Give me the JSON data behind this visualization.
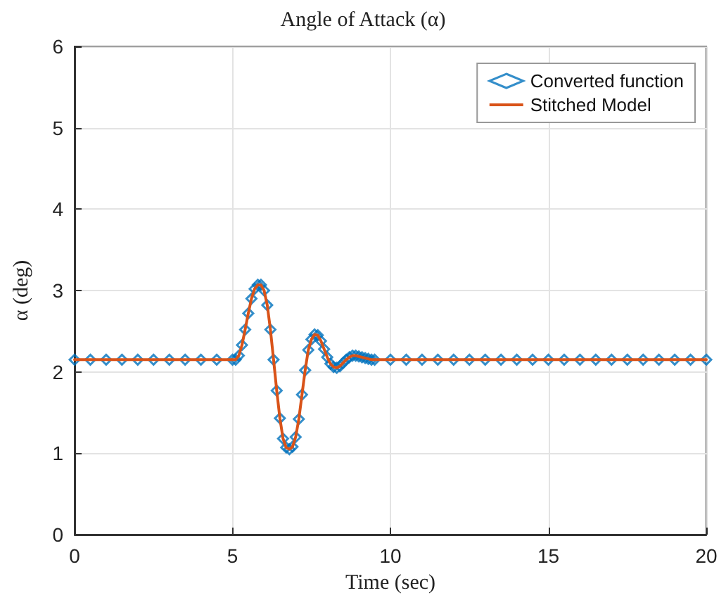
{
  "chart_data": {
    "type": "line",
    "title": "Angle of Attack (α)",
    "xlabel": "Time (sec)",
    "ylabel": "α (deg)",
    "x": [
      0,
      0.5,
      1,
      1.5,
      2,
      2.5,
      3,
      3.5,
      4,
      4.5,
      5,
      5.1,
      5.2,
      5.3,
      5.4,
      5.5,
      5.6,
      5.7,
      5.8,
      5.9,
      6,
      6.1,
      6.2,
      6.3,
      6.4,
      6.5,
      6.6,
      6.7,
      6.8,
      6.9,
      7,
      7.1,
      7.2,
      7.3,
      7.4,
      7.5,
      7.6,
      7.7,
      7.8,
      7.9,
      8,
      8.1,
      8.2,
      8.3,
      8.4,
      8.5,
      8.6,
      8.7,
      8.8,
      8.9,
      9,
      9.1,
      9.2,
      9.3,
      9.4,
      9.5,
      10,
      10.5,
      11,
      11.5,
      12,
      12.5,
      13,
      13.5,
      14,
      14.5,
      15,
      15.5,
      16,
      16.5,
      17,
      17.5,
      18,
      18.5,
      19,
      19.5,
      20
    ],
    "series": [
      {
        "name": "Converted function",
        "type": "scatter",
        "marker": "diamond",
        "color": "#0072bd",
        "values": [
          2.15,
          2.15,
          2.15,
          2.15,
          2.15,
          2.15,
          2.15,
          2.15,
          2.15,
          2.15,
          2.15,
          2.15,
          2.2,
          2.33,
          2.52,
          2.72,
          2.9,
          3.02,
          3.07,
          3.07,
          3.0,
          2.82,
          2.52,
          2.15,
          1.77,
          1.43,
          1.18,
          1.07,
          1.05,
          1.08,
          1.2,
          1.42,
          1.72,
          2.02,
          2.27,
          2.4,
          2.46,
          2.45,
          2.38,
          2.28,
          2.18,
          2.1,
          2.06,
          2.05,
          2.07,
          2.11,
          2.15,
          2.18,
          2.2,
          2.2,
          2.19,
          2.18,
          2.17,
          2.16,
          2.15,
          2.15,
          2.15,
          2.15,
          2.15,
          2.15,
          2.15,
          2.15,
          2.15,
          2.15,
          2.15,
          2.15,
          2.15,
          2.15,
          2.15,
          2.15,
          2.15,
          2.15,
          2.15,
          2.15,
          2.15,
          2.15,
          2.15
        ]
      },
      {
        "name": "Stitched Model",
        "type": "line",
        "marker": "none",
        "line_style": "solid",
        "color": "#d95319",
        "values": [
          2.15,
          2.15,
          2.15,
          2.15,
          2.15,
          2.15,
          2.15,
          2.15,
          2.15,
          2.15,
          2.15,
          2.15,
          2.2,
          2.33,
          2.52,
          2.72,
          2.9,
          3.02,
          3.07,
          3.07,
          3.0,
          2.82,
          2.52,
          2.15,
          1.77,
          1.43,
          1.18,
          1.07,
          1.05,
          1.08,
          1.2,
          1.42,
          1.72,
          2.02,
          2.27,
          2.4,
          2.46,
          2.45,
          2.38,
          2.28,
          2.18,
          2.1,
          2.06,
          2.05,
          2.07,
          2.11,
          2.15,
          2.18,
          2.2,
          2.2,
          2.19,
          2.18,
          2.17,
          2.16,
          2.15,
          2.15,
          2.15,
          2.15,
          2.15,
          2.15,
          2.15,
          2.15,
          2.15,
          2.15,
          2.15,
          2.15,
          2.15,
          2.15,
          2.15,
          2.15,
          2.15,
          2.15,
          2.15,
          2.15,
          2.15,
          2.15,
          2.15
        ]
      }
    ],
    "xlim": [
      0,
      20
    ],
    "xticks": [
      0,
      5,
      10,
      15,
      20
    ],
    "ylim": [
      0,
      6
    ],
    "yticks": [
      0,
      1,
      2,
      3,
      4,
      5,
      6
    ],
    "grid": true,
    "legend": "top right"
  }
}
